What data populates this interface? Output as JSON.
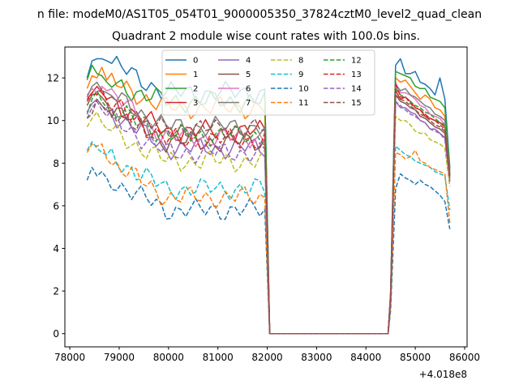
{
  "figure": {
    "suptitle": "n file: modeM0/AS1T05_054T01_9000005350_37824cztM0_level2_quad_clean",
    "title": "Quadrant 2 module wise count rates with 100.0s bins.",
    "offset_label": "+4.018e8"
  },
  "chart_data": {
    "type": "line",
    "title": "Quadrant 2 module wise count rates with 100.0s bins.",
    "xlabel": "",
    "ylabel": "",
    "xlim": [
      77900,
      86050
    ],
    "ylim": [
      -0.62,
      13.45
    ],
    "x_offset": 401800000,
    "xticks": [
      78000,
      79000,
      80000,
      81000,
      82000,
      83000,
      84000,
      85000,
      86000
    ],
    "yticks": [
      0,
      2,
      4,
      6,
      8,
      10,
      12
    ],
    "grid": false,
    "legend": {
      "position": "top-center",
      "columns": 4
    },
    "bin_width_s": 100,
    "segment1_start": 78350,
    "segment2_start": 84500,
    "gap_x": [
      82050,
      82650,
      83250,
      83850,
      84450
    ],
    "gap_value": 0,
    "series": [
      {
        "name": "0",
        "style": "solid",
        "color": "#1f77b4",
        "level": 11.3,
        "seg1_head": [
          12.0,
          12.8,
          12.9,
          12.9,
          12.8
        ],
        "seg2": [
          2.0,
          12.6,
          12.9,
          12.2,
          12.2,
          12.3,
          11.8,
          11.7,
          11.5,
          11.2,
          12.0,
          11.0,
          7.8
        ]
      },
      {
        "name": "1",
        "style": "solid",
        "color": "#ff7f0e",
        "level": 10.6,
        "seg1_head": [
          11.5,
          12.1,
          12.0,
          12.5,
          11.9
        ],
        "seg2": [
          1.6,
          12.0,
          11.8,
          11.9,
          11.6,
          11.3,
          11.0,
          11.2,
          11.0,
          10.6,
          10.5,
          10.2,
          7.6
        ]
      },
      {
        "name": "2",
        "style": "solid",
        "color": "#2ca02c",
        "level": 10.9,
        "seg1_head": [
          11.9,
          12.6,
          12.2,
          12.1,
          11.8
        ],
        "seg2": [
          1.9,
          12.3,
          12.2,
          12.1,
          12.0,
          11.6,
          11.5,
          11.5,
          11.1,
          11.0,
          10.9,
          10.6,
          7.7
        ]
      },
      {
        "name": "3",
        "style": "solid",
        "color": "#d62728",
        "level": 9.5,
        "seg1_head": [
          11.0,
          11.3,
          11.6,
          11.3,
          11.0
        ],
        "seg2": [
          1.7,
          11.4,
          11.0,
          11.1,
          10.9,
          10.6,
          10.5,
          10.2,
          10.1,
          10.0,
          9.9,
          9.7,
          7.4
        ]
      },
      {
        "name": "4",
        "style": "solid",
        "color": "#9467bd",
        "level": 8.7,
        "seg1_head": [
          10.4,
          10.8,
          11.0,
          10.7,
          10.5
        ],
        "seg2": [
          1.6,
          10.9,
          10.6,
          10.6,
          10.4,
          10.3,
          10.0,
          9.9,
          9.6,
          9.6,
          9.4,
          9.2,
          7.2
        ]
      },
      {
        "name": "5",
        "style": "solid",
        "color": "#8c564b",
        "level": 9.0,
        "seg1_head": [
          10.7,
          11.2,
          11.3,
          11.1,
          10.8
        ],
        "seg2": [
          1.7,
          11.2,
          10.9,
          10.8,
          10.6,
          10.5,
          10.2,
          10.1,
          9.9,
          9.7,
          9.6,
          9.4,
          7.3
        ]
      },
      {
        "name": "6",
        "style": "solid",
        "color": "#e377c2",
        "level": 9.2,
        "seg1_head": [
          11.2,
          11.5,
          11.3,
          11.6,
          11.4
        ],
        "seg2": [
          1.7,
          11.6,
          11.3,
          11.3,
          11.2,
          11.0,
          10.7,
          10.6,
          10.3,
          10.2,
          10.1,
          9.8,
          7.5
        ]
      },
      {
        "name": "7",
        "style": "solid",
        "color": "#7f7f7f",
        "level": 9.7,
        "seg1_head": [
          11.1,
          11.6,
          11.8,
          11.4,
          11.3
        ],
        "seg2": [
          1.8,
          11.7,
          11.4,
          11.5,
          11.2,
          11.1,
          10.9,
          10.7,
          10.6,
          10.3,
          10.2,
          10.0,
          7.5
        ]
      },
      {
        "name": "8",
        "style": "dashed",
        "color": "#bcbd22",
        "level": 8.1,
        "seg1_head": [
          9.7,
          10.1,
          10.4,
          9.9,
          9.6
        ],
        "seg2": [
          1.5,
          10.2,
          10.0,
          10.0,
          9.8,
          9.5,
          9.4,
          9.4,
          9.1,
          9.0,
          8.9,
          8.7,
          6.9
        ]
      },
      {
        "name": "9",
        "style": "dashed",
        "color": "#17becf",
        "level": 6.8,
        "seg1_head": [
          8.6,
          9.0,
          8.7,
          8.5,
          8.4
        ],
        "seg2": [
          1.3,
          8.8,
          8.6,
          8.4,
          8.3,
          8.1,
          8.0,
          7.9,
          7.8,
          7.6,
          7.5,
          7.4,
          5.8
        ]
      },
      {
        "name": "10",
        "style": "dashed",
        "color": "#1f77b4",
        "level": 5.8,
        "seg1_head": [
          7.2,
          7.8,
          7.4,
          7.6,
          7.3
        ],
        "seg2": [
          1.1,
          6.8,
          7.5,
          7.3,
          7.2,
          7.0,
          7.2,
          7.0,
          6.9,
          6.7,
          6.5,
          6.2,
          4.9
        ]
      },
      {
        "name": "11",
        "style": "dashed",
        "color": "#ff7f0e",
        "level": 6.4,
        "seg1_head": [
          8.5,
          8.9,
          8.8,
          8.9,
          8.2
        ],
        "seg2": [
          1.3,
          8.5,
          8.4,
          8.2,
          8.3,
          8.6,
          8.1,
          8.0,
          7.8,
          7.7,
          7.6,
          7.5,
          5.2
        ]
      },
      {
        "name": "12",
        "style": "dashed",
        "color": "#2ca02c",
        "level": 9.3,
        "seg1_head": [
          10.3,
          11.0,
          11.4,
          10.9,
          10.6
        ],
        "seg2": [
          1.7,
          11.5,
          11.2,
          11.1,
          10.9,
          10.7,
          10.6,
          10.4,
          10.3,
          10.1,
          9.9,
          9.8,
          7.4
        ]
      },
      {
        "name": "13",
        "style": "dashed",
        "color": "#d62728",
        "level": 9.1,
        "seg1_head": [
          10.9,
          11.3,
          11.2,
          11.5,
          10.9
        ],
        "seg2": [
          1.7,
          11.8,
          11.1,
          11.1,
          10.8,
          10.6,
          10.5,
          10.3,
          10.1,
          10.0,
          9.8,
          9.6,
          7.4
        ]
      },
      {
        "name": "14",
        "style": "dashed",
        "color": "#9467bd",
        "level": 8.5,
        "seg1_head": [
          10.1,
          10.6,
          10.9,
          10.5,
          10.2
        ],
        "seg2": [
          1.6,
          10.9,
          10.7,
          10.5,
          10.3,
          10.2,
          10.0,
          9.9,
          9.6,
          9.5,
          9.4,
          9.1,
          7.1
        ]
      },
      {
        "name": "15",
        "style": "dashed",
        "color": "#8c564b",
        "level": 9.6,
        "seg1_head": [
          10.1,
          10.3,
          11.0,
          10.7,
          10.4
        ],
        "seg2": [
          1.7,
          11.2,
          11.0,
          10.9,
          10.7,
          10.5,
          10.3,
          10.2,
          10.0,
          9.8,
          9.7,
          9.5,
          7.3
        ]
      }
    ]
  }
}
